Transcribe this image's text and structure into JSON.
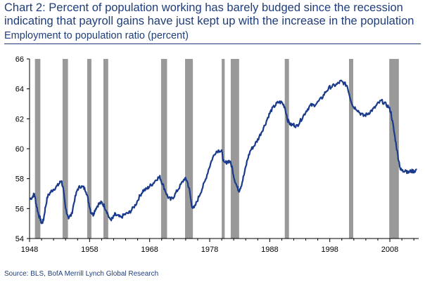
{
  "header": {
    "title": "Chart 2: Percent of population working has barely budged since the recession indicating that payroll gains have just kept up with the increase in the population",
    "subtitle": "Employment to population ratio (percent)"
  },
  "footer": {
    "source": "Source: BLS, BofA Merrill Lynch Global Research"
  },
  "chart_data": {
    "type": "line",
    "title": "Chart 2: Percent of population working has barely budged since the recession indicating that payroll gains have just kept up with the increase in the population",
    "ylabel": "Employment to population ratio (percent)",
    "xlabel": "",
    "xlim": [
      1948,
      2012.8
    ],
    "ylim": [
      54,
      66
    ],
    "x_ticks": [
      "1948",
      "1958",
      "1968",
      "1978",
      "1988",
      "1998",
      "2008"
    ],
    "y_ticks": [
      "54",
      "56",
      "58",
      "60",
      "62",
      "64",
      "66"
    ],
    "grid": false,
    "line_color": "#1a3a8c",
    "recession_color": "#999999",
    "recessions": [
      [
        1948.9,
        1949.8
      ],
      [
        1953.5,
        1954.4
      ],
      [
        1957.6,
        1958.3
      ],
      [
        1960.3,
        1961.1
      ],
      [
        1969.9,
        1970.9
      ],
      [
        1973.9,
        1975.2
      ],
      [
        1980.0,
        1980.5
      ],
      [
        1981.5,
        1982.9
      ],
      [
        1990.5,
        1991.2
      ],
      [
        2001.2,
        2001.9
      ],
      [
        2007.9,
        2009.5
      ]
    ],
    "series": [
      {
        "points": [
          [
            1948.0,
            56.6
          ],
          [
            1948.5,
            56.8
          ],
          [
            1948.8,
            57.0
          ],
          [
            1949.1,
            56.3
          ],
          [
            1949.5,
            55.6
          ],
          [
            1949.8,
            55.3
          ],
          [
            1950.0,
            55.0
          ],
          [
            1950.3,
            55.2
          ],
          [
            1950.6,
            56.0
          ],
          [
            1951.0,
            56.8
          ],
          [
            1951.5,
            57.1
          ],
          [
            1952.0,
            57.3
          ],
          [
            1952.6,
            57.5
          ],
          [
            1953.0,
            57.7
          ],
          [
            1953.3,
            57.9
          ],
          [
            1953.6,
            57.3
          ],
          [
            1954.0,
            56.0
          ],
          [
            1954.5,
            55.4
          ],
          [
            1955.0,
            55.6
          ],
          [
            1955.5,
            56.6
          ],
          [
            1956.0,
            57.3
          ],
          [
            1956.5,
            57.5
          ],
          [
            1957.0,
            57.4
          ],
          [
            1957.4,
            57.2
          ],
          [
            1957.8,
            56.5
          ],
          [
            1958.2,
            55.8
          ],
          [
            1958.6,
            55.6
          ],
          [
            1959.0,
            56.0
          ],
          [
            1959.5,
            56.3
          ],
          [
            1960.0,
            56.4
          ],
          [
            1960.4,
            56.2
          ],
          [
            1960.9,
            55.8
          ],
          [
            1961.3,
            55.3
          ],
          [
            1961.8,
            55.3
          ],
          [
            1962.2,
            55.6
          ],
          [
            1962.7,
            55.5
          ],
          [
            1963.2,
            55.4
          ],
          [
            1963.8,
            55.6
          ],
          [
            1964.5,
            55.7
          ],
          [
            1965.0,
            55.9
          ],
          [
            1965.7,
            56.3
          ],
          [
            1966.3,
            56.8
          ],
          [
            1966.9,
            57.2
          ],
          [
            1967.5,
            57.3
          ],
          [
            1968.0,
            57.5
          ],
          [
            1968.6,
            57.7
          ],
          [
            1969.2,
            58.0
          ],
          [
            1969.7,
            58.1
          ],
          [
            1970.0,
            57.8
          ],
          [
            1970.5,
            57.3
          ],
          [
            1971.0,
            56.8
          ],
          [
            1971.5,
            56.6
          ],
          [
            1972.0,
            56.8
          ],
          [
            1972.6,
            57.2
          ],
          [
            1973.2,
            57.6
          ],
          [
            1973.8,
            58.0
          ],
          [
            1974.2,
            57.9
          ],
          [
            1974.6,
            57.3
          ],
          [
            1975.0,
            56.2
          ],
          [
            1975.4,
            56.0
          ],
          [
            1976.0,
            56.6
          ],
          [
            1976.6,
            57.2
          ],
          [
            1977.2,
            57.8
          ],
          [
            1977.8,
            58.6
          ],
          [
            1978.4,
            59.3
          ],
          [
            1979.0,
            59.8
          ],
          [
            1979.6,
            59.9
          ],
          [
            1980.0,
            59.8
          ],
          [
            1980.4,
            59.0
          ],
          [
            1980.8,
            59.1
          ],
          [
            1981.3,
            59.2
          ],
          [
            1981.7,
            58.8
          ],
          [
            1982.1,
            58.0
          ],
          [
            1982.6,
            57.4
          ],
          [
            1982.9,
            57.2
          ],
          [
            1983.3,
            57.6
          ],
          [
            1983.8,
            58.4
          ],
          [
            1984.3,
            59.3
          ],
          [
            1984.8,
            59.9
          ],
          [
            1985.4,
            60.2
          ],
          [
            1986.0,
            60.6
          ],
          [
            1986.6,
            61.1
          ],
          [
            1987.2,
            61.6
          ],
          [
            1987.8,
            62.2
          ],
          [
            1988.3,
            62.6
          ],
          [
            1988.9,
            62.9
          ],
          [
            1989.4,
            63.1
          ],
          [
            1990.0,
            63.1
          ],
          [
            1990.5,
            62.8
          ],
          [
            1991.0,
            61.9
          ],
          [
            1991.5,
            61.6
          ],
          [
            1992.0,
            61.6
          ],
          [
            1992.5,
            61.5
          ],
          [
            1993.0,
            61.8
          ],
          [
            1993.6,
            62.2
          ],
          [
            1994.2,
            62.6
          ],
          [
            1994.8,
            62.9
          ],
          [
            1995.3,
            62.9
          ],
          [
            1996.0,
            63.1
          ],
          [
            1996.7,
            63.4
          ],
          [
            1997.3,
            63.8
          ],
          [
            1998.0,
            64.1
          ],
          [
            1998.6,
            64.2
          ],
          [
            1999.2,
            64.3
          ],
          [
            1999.8,
            64.5
          ],
          [
            2000.3,
            64.4
          ],
          [
            2000.9,
            64.2
          ],
          [
            2001.4,
            63.4
          ],
          [
            2001.9,
            62.8
          ],
          [
            2002.4,
            62.7
          ],
          [
            2003.0,
            62.4
          ],
          [
            2003.6,
            62.2
          ],
          [
            2004.2,
            62.3
          ],
          [
            2004.8,
            62.5
          ],
          [
            2005.4,
            62.7
          ],
          [
            2006.0,
            63.0
          ],
          [
            2006.6,
            63.2
          ],
          [
            2007.2,
            63.0
          ],
          [
            2007.8,
            62.8
          ],
          [
            2008.2,
            62.4
          ],
          [
            2008.6,
            61.4
          ],
          [
            2009.0,
            60.4
          ],
          [
            2009.4,
            59.4
          ],
          [
            2009.8,
            58.6
          ],
          [
            2010.2,
            58.5
          ],
          [
            2010.6,
            58.6
          ],
          [
            2011.0,
            58.4
          ],
          [
            2011.5,
            58.5
          ],
          [
            2012.0,
            58.5
          ],
          [
            2012.5,
            58.6
          ]
        ]
      }
    ]
  }
}
